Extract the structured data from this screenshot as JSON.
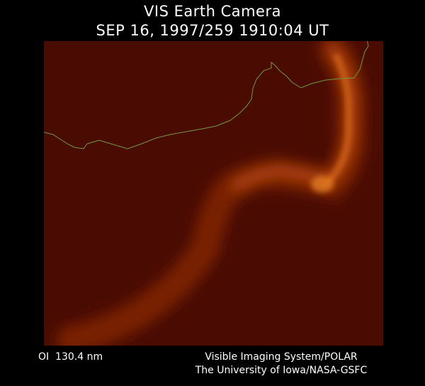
{
  "header": {
    "title": "VIS Earth Camera",
    "subtitle": "SEP 16, 1997/259 1910:04 UT"
  },
  "footer": {
    "wavelength": "OI  130.4 nm",
    "instrument": "Visible Imaging System/POLAR",
    "institution": "The University of Iowa/NASA-GSFC"
  }
}
